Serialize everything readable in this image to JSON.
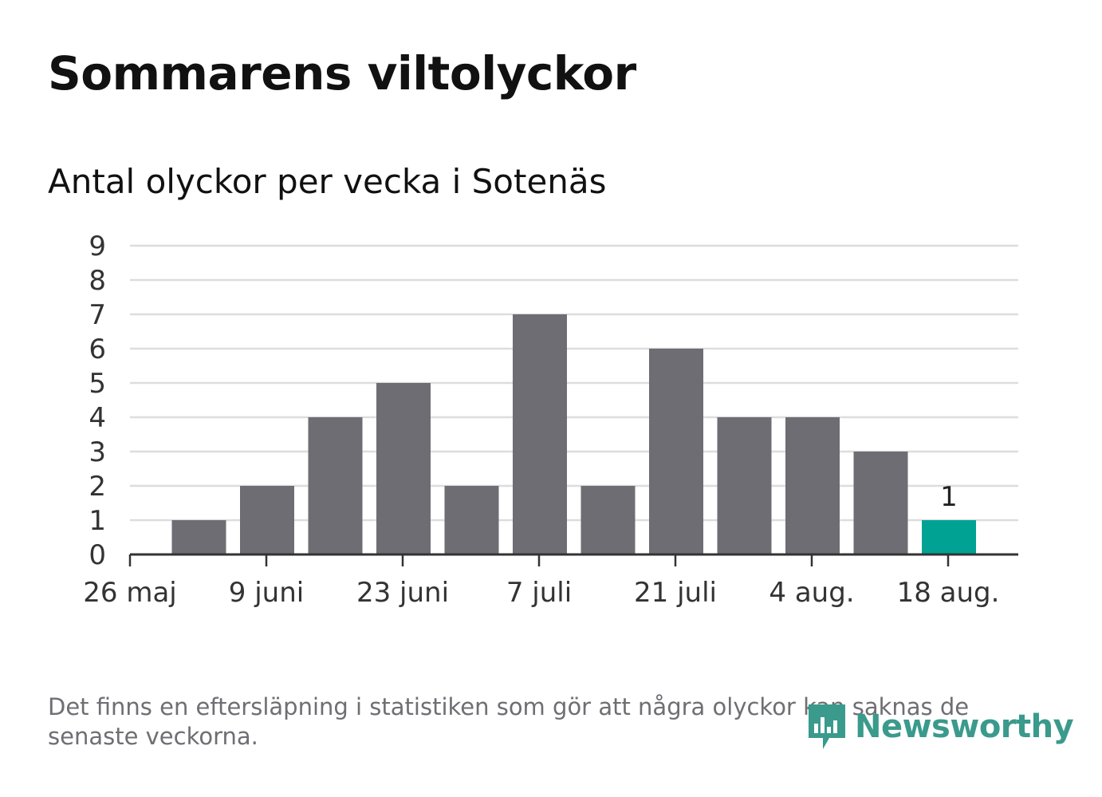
{
  "title": "Sommarens viltolyckor",
  "subtitle": "Antal olyckor per vecka i Sotenäs",
  "footnote": "Det finns en eftersläpning i statistiken som gör att några olyckor kan saknas de senaste veckorna.",
  "brand": {
    "name": "Newsworthy",
    "icon": "bar-chart-icon",
    "color": "#3a9a8c"
  },
  "colors": {
    "bar": "#6e6d73",
    "highlight": "#00a293",
    "grid": "#dddddd",
    "axis": "#333333"
  },
  "chart_data": {
    "type": "bar",
    "x": [
      "2024-06-02",
      "2024-06-09",
      "2024-06-16",
      "2024-06-23",
      "2024-06-30",
      "2024-07-07",
      "2024-07-14",
      "2024-07-21",
      "2024-07-28",
      "2024-08-04",
      "2024-08-11",
      "2024-08-18"
    ],
    "values": [
      1,
      2,
      4,
      5,
      2,
      7,
      2,
      6,
      4,
      4,
      3,
      1
    ],
    "highlight_index": 11,
    "data_labels": [
      {
        "index": 11,
        "text": "1"
      }
    ],
    "x_ticks": [
      "26 maj",
      "9 juni",
      "23 juni",
      "7 juli",
      "21 juli",
      "4 aug.",
      "18 aug."
    ],
    "y_ticks": [
      "0",
      "1",
      "2",
      "3",
      "4",
      "5",
      "6",
      "7",
      "8",
      "9"
    ],
    "ylim": [
      0,
      9
    ],
    "grid": true,
    "legend": "none"
  }
}
